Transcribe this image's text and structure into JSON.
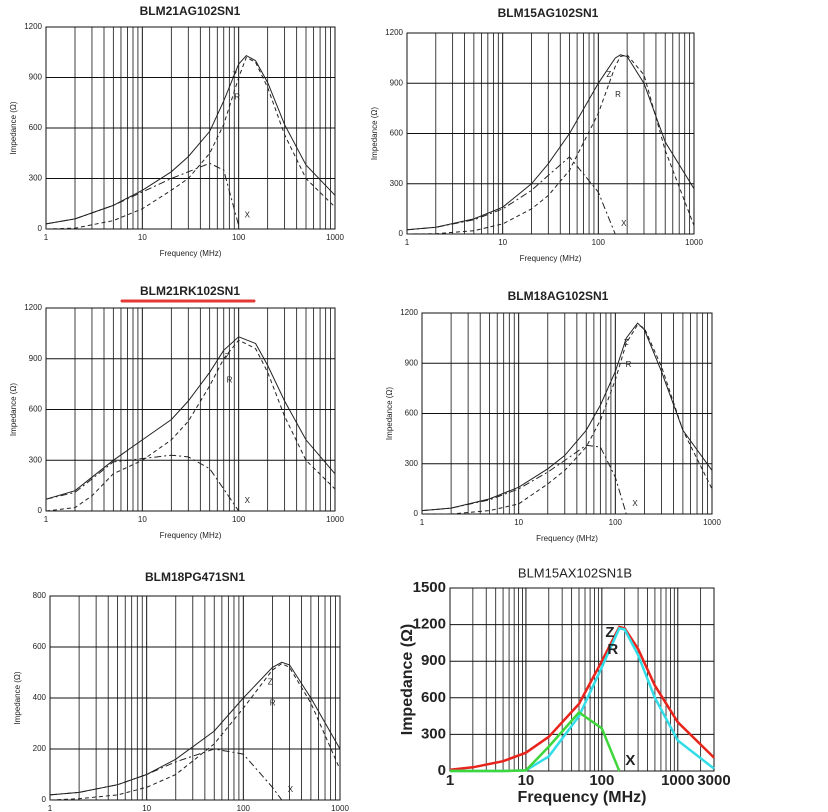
{
  "chart_data": [
    {
      "type": "line",
      "title": "BLM21AG102SN1",
      "xlabel": "Frequency (MHz)",
      "ylabel": "Impedance (Ω)",
      "xscale": "log",
      "grid": true,
      "minor_grid": true,
      "xlim": [
        1,
        1000
      ],
      "xticks": [
        1,
        10,
        100,
        1000
      ],
      "ylim": [
        0,
        1200
      ],
      "yticks": [
        0,
        300,
        600,
        900,
        1200
      ],
      "x": [
        1,
        2,
        5,
        10,
        20,
        30,
        50,
        70,
        100,
        120,
        150,
        200,
        300,
        500,
        1000
      ],
      "series": [
        {
          "name": "Z",
          "color": "#222222",
          "dash": "solid",
          "values": [
            30,
            60,
            140,
            230,
            340,
            430,
            580,
            760,
            980,
            1030,
            1000,
            870,
            620,
            380,
            200
          ]
        },
        {
          "name": "R",
          "color": "#222222",
          "dash": "dashed",
          "values": [
            0,
            5,
            50,
            120,
            230,
            300,
            450,
            620,
            900,
            1020,
            990,
            840,
            560,
            300,
            130
          ]
        },
        {
          "name": "X",
          "color": "#222222",
          "dash": "dashdot",
          "values": [
            30,
            60,
            140,
            220,
            300,
            340,
            390,
            350,
            20,
            null,
            null,
            null,
            null,
            null,
            null
          ]
        }
      ]
    },
    {
      "type": "line",
      "title": "BLM15AG102SN1",
      "xlabel": "Frequency (MHz)",
      "ylabel": "Impedance (Ω)",
      "xscale": "log",
      "grid": true,
      "minor_grid": true,
      "xlim": [
        1,
        1000
      ],
      "xticks": [
        1,
        10,
        100,
        1000
      ],
      "ylim": [
        0,
        1200
      ],
      "yticks": [
        0,
        300,
        600,
        900,
        1200
      ],
      "x": [
        1,
        2,
        5,
        10,
        20,
        30,
        50,
        100,
        150,
        170,
        200,
        300,
        500,
        1000
      ],
      "series": [
        {
          "name": "Z",
          "color": "#222222",
          "dash": "solid",
          "values": [
            25,
            40,
            90,
            160,
            300,
            420,
            600,
            900,
            1050,
            1070,
            1060,
            900,
            550,
            270
          ]
        },
        {
          "name": "R",
          "color": "#222222",
          "dash": "dashed",
          "values": [
            0,
            2,
            20,
            60,
            150,
            230,
            380,
            720,
            1000,
            1060,
            1070,
            950,
            500,
            50
          ]
        },
        {
          "name": "X",
          "color": "#222222",
          "dash": "dashdot",
          "values": [
            25,
            40,
            85,
            150,
            260,
            350,
            460,
            250,
            0,
            null,
            null,
            null,
            null,
            null
          ]
        }
      ]
    },
    {
      "type": "line",
      "title": "BLM21RK102SN1",
      "title_underline": "#e53935",
      "xlabel": "Frequency (MHz)",
      "ylabel": "Impedance (Ω)",
      "xscale": "log",
      "grid": true,
      "minor_grid": true,
      "xlim": [
        1,
        1000
      ],
      "xticks": [
        1,
        10,
        100,
        1000
      ],
      "ylim": [
        0,
        1200
      ],
      "yticks": [
        0,
        300,
        600,
        900,
        1200
      ],
      "x": [
        1,
        2,
        3,
        5,
        10,
        20,
        30,
        50,
        70,
        100,
        150,
        200,
        300,
        500,
        1000
      ],
      "series": [
        {
          "name": "Z",
          "color": "#222222",
          "dash": "solid",
          "values": [
            70,
            120,
            200,
            300,
            420,
            540,
            650,
            820,
            950,
            1030,
            990,
            860,
            650,
            420,
            220
          ]
        },
        {
          "name": "R",
          "color": "#222222",
          "dash": "dashed",
          "values": [
            0,
            20,
            90,
            220,
            300,
            420,
            530,
            740,
            900,
            1010,
            960,
            820,
            560,
            300,
            130
          ]
        },
        {
          "name": "X",
          "color": "#222222",
          "dash": "dashdot",
          "values": [
            70,
            110,
            190,
            290,
            310,
            330,
            320,
            250,
            130,
            0,
            null,
            null,
            null,
            null,
            null
          ]
        }
      ]
    },
    {
      "type": "line",
      "title": "BLM18AG102SN1",
      "xlabel": "Frequency (MHz)",
      "ylabel": "Impedance (Ω)",
      "xscale": "log",
      "grid": true,
      "minor_grid": true,
      "xlim": [
        1,
        1000
      ],
      "xticks": [
        1,
        10,
        100,
        1000
      ],
      "ylim": [
        0,
        1200
      ],
      "yticks": [
        0,
        300,
        600,
        900,
        1200
      ],
      "x": [
        1,
        2,
        5,
        10,
        20,
        30,
        50,
        70,
        100,
        130,
        170,
        200,
        300,
        500,
        1000
      ],
      "series": [
        {
          "name": "Z",
          "color": "#222222",
          "dash": "solid",
          "values": [
            20,
            35,
            90,
            160,
            270,
            350,
            500,
            650,
            850,
            1050,
            1140,
            1100,
            850,
            500,
            260
          ]
        },
        {
          "name": "R",
          "color": "#222222",
          "dash": "dashed",
          "values": [
            0,
            0,
            20,
            60,
            180,
            260,
            400,
            560,
            800,
            1020,
            1130,
            1110,
            880,
            500,
            150
          ]
        },
        {
          "name": "X",
          "color": "#222222",
          "dash": "dashdot",
          "values": [
            20,
            35,
            85,
            150,
            250,
            320,
            410,
            400,
            220,
            0,
            null,
            null,
            null,
            null,
            null
          ]
        }
      ]
    },
    {
      "type": "line",
      "title": "BLM18PG471SN1",
      "xlabel": "Frequency (MHz)",
      "ylabel": "Impedance (Ω)",
      "xscale": "log",
      "grid": true,
      "minor_grid": true,
      "xlim": [
        1,
        1000
      ],
      "xticks": [
        1,
        10,
        100,
        1000
      ],
      "ylim": [
        0,
        800
      ],
      "yticks": [
        0,
        200,
        400,
        600,
        800
      ],
      "x": [
        1,
        2,
        5,
        10,
        20,
        50,
        100,
        200,
        250,
        300,
        500,
        1000
      ],
      "series": [
        {
          "name": "Z",
          "color": "#222222",
          "dash": "solid",
          "values": [
            20,
            30,
            60,
            100,
            160,
            270,
            400,
            520,
            540,
            530,
            400,
            200
          ]
        },
        {
          "name": "R",
          "color": "#222222",
          "dash": "dashed",
          "values": [
            0,
            5,
            20,
            50,
            100,
            220,
            360,
            510,
            535,
            520,
            380,
            120
          ]
        },
        {
          "name": "X",
          "color": "#222222",
          "dash": "dashdot",
          "values": [
            20,
            30,
            60,
            100,
            150,
            200,
            180,
            50,
            0,
            null,
            null,
            null
          ]
        }
      ]
    },
    {
      "type": "line",
      "title": "BLM15AX102SN1B",
      "xlabel": "Frequency (MHz)",
      "ylabel": "Impedance (Ω)",
      "xscale": "log",
      "grid": true,
      "minor_grid": true,
      "xlim": [
        1,
        3000
      ],
      "xticks": [
        1,
        10,
        100,
        1000,
        3000
      ],
      "ylim": [
        0,
        1500
      ],
      "yticks": [
        0,
        300,
        600,
        900,
        1200,
        1500
      ],
      "x": [
        1,
        2,
        5,
        10,
        20,
        50,
        100,
        170,
        200,
        300,
        500,
        1000,
        3000
      ],
      "series": [
        {
          "name": "Z",
          "color": "#e8241c",
          "dash": "solid",
          "values": [
            10,
            30,
            80,
            150,
            280,
            550,
            900,
            1180,
            1170,
            1000,
            700,
            400,
            110
          ]
        },
        {
          "name": "R",
          "color": "#33dde8",
          "dash": "solid",
          "values": [
            0,
            0,
            0,
            5,
            120,
            450,
            850,
            1170,
            1160,
            950,
            600,
            250,
            20
          ]
        },
        {
          "name": "X",
          "color": "#3ed63a",
          "dash": "solid",
          "values": [
            0,
            0,
            0,
            5,
            200,
            480,
            350,
            0,
            null,
            null,
            null,
            null,
            null
          ]
        }
      ]
    }
  ]
}
